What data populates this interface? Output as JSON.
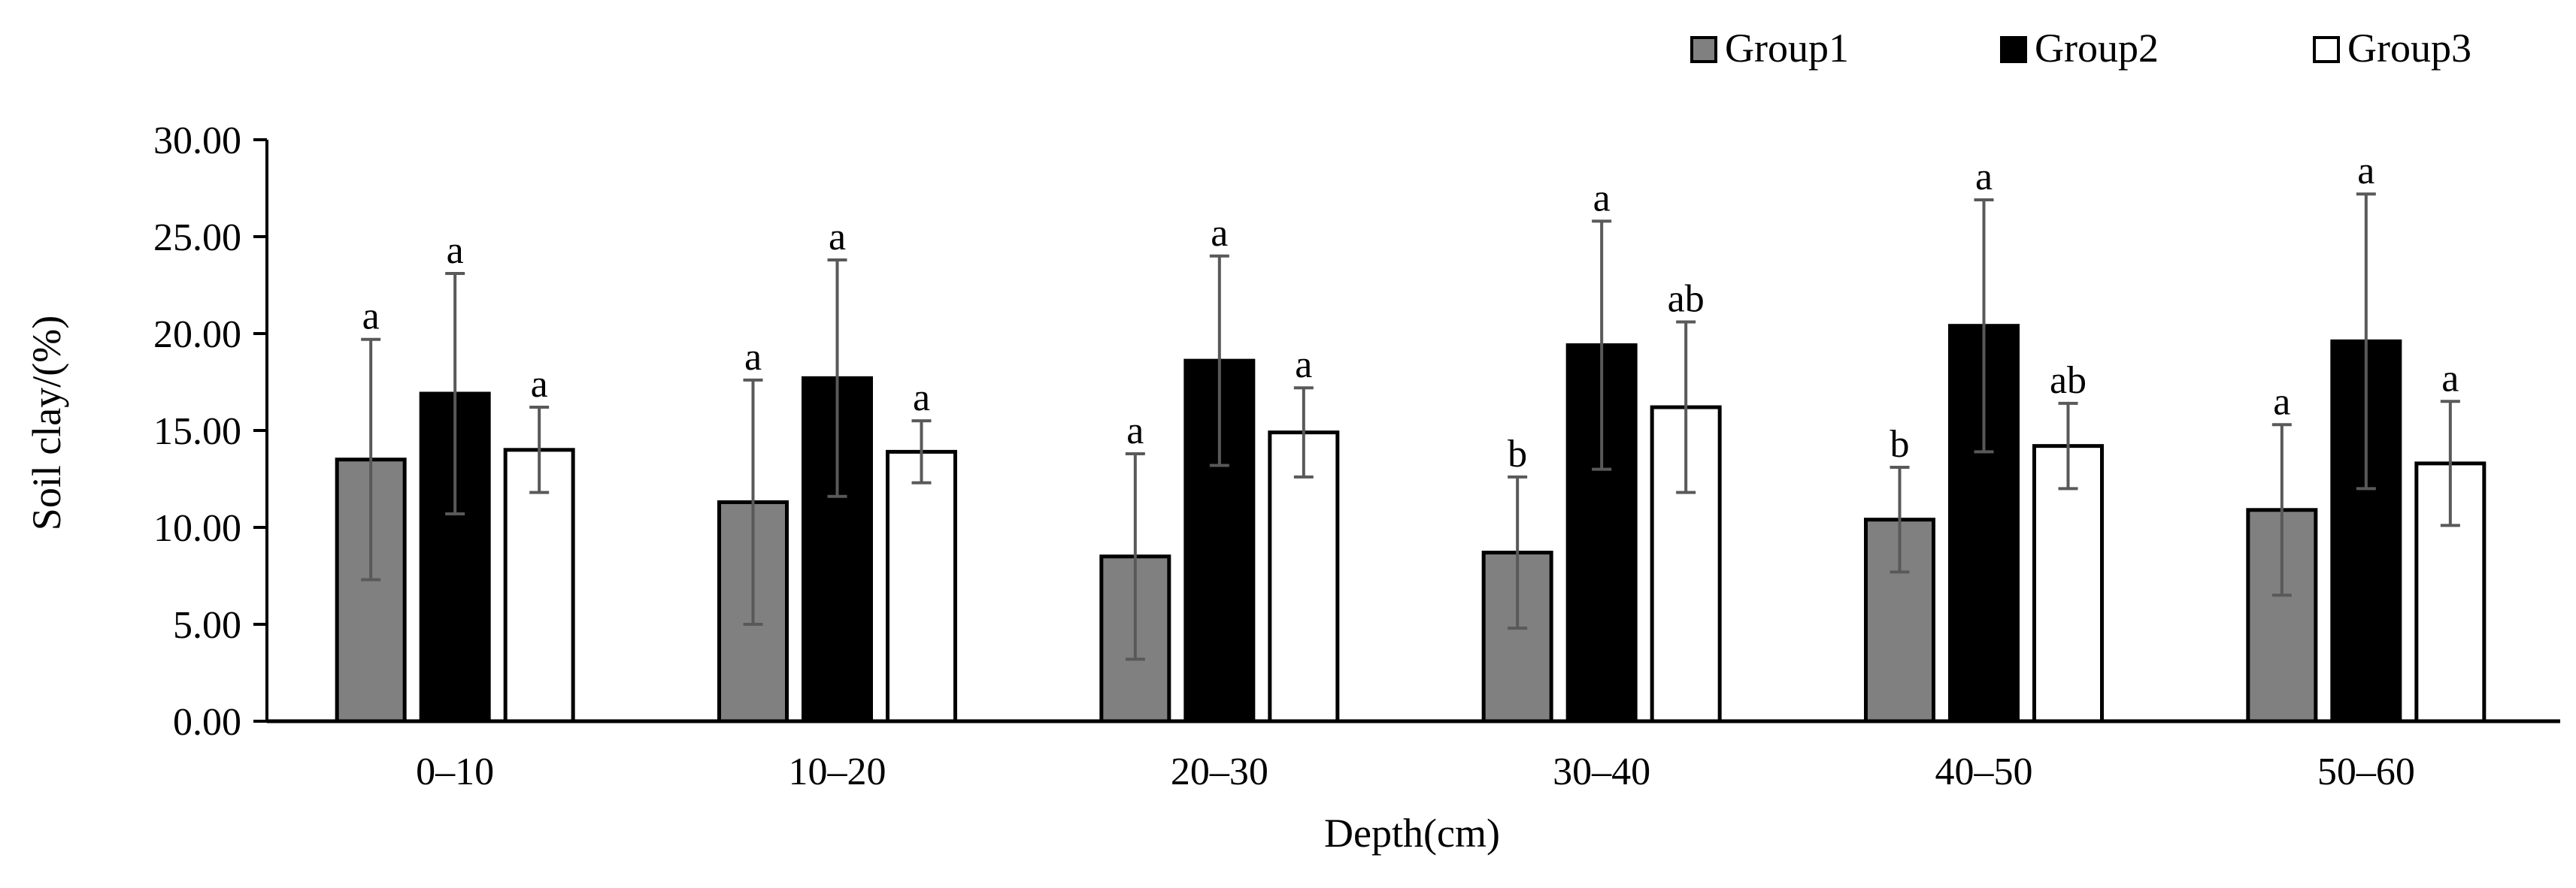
{
  "chart_data": {
    "type": "bar",
    "title": "",
    "xlabel": "Depth(cm)",
    "ylabel": "Soil clay/(%)",
    "ylim": [
      0,
      30
    ],
    "yticks": [
      "0.00",
      "5.00",
      "10.00",
      "15.00",
      "20.00",
      "25.00",
      "30.00"
    ],
    "ytick_values": [
      0,
      5,
      10,
      15,
      20,
      25,
      30
    ],
    "categories": [
      "0–10",
      "10–20",
      "20–30",
      "30–40",
      "40–50",
      "50–60"
    ],
    "legend_position": "top-right",
    "series": [
      {
        "name": "Group1",
        "color": "#808080",
        "values": [
          13.5,
          11.3,
          8.5,
          8.7,
          10.4,
          10.9
        ],
        "errors": [
          6.2,
          6.3,
          5.3,
          3.9,
          2.7,
          4.4
        ],
        "labels": [
          "a",
          "a",
          "a",
          "b",
          "b",
          "a"
        ]
      },
      {
        "name": "Group2",
        "color": "#000000",
        "values": [
          16.9,
          17.7,
          18.6,
          19.4,
          20.4,
          19.6
        ],
        "errors": [
          6.2,
          6.1,
          5.4,
          6.4,
          6.5,
          7.6
        ],
        "labels": [
          "a",
          "a",
          "a",
          "a",
          "a",
          "a"
        ]
      },
      {
        "name": "Group3",
        "color": "#ffffff",
        "values": [
          14.0,
          13.9,
          14.9,
          16.2,
          14.2,
          13.3
        ],
        "errors": [
          2.2,
          1.6,
          2.3,
          4.4,
          2.2,
          3.2
        ],
        "labels": [
          "a",
          "a",
          "a",
          "ab",
          "ab",
          "a"
        ]
      }
    ]
  }
}
